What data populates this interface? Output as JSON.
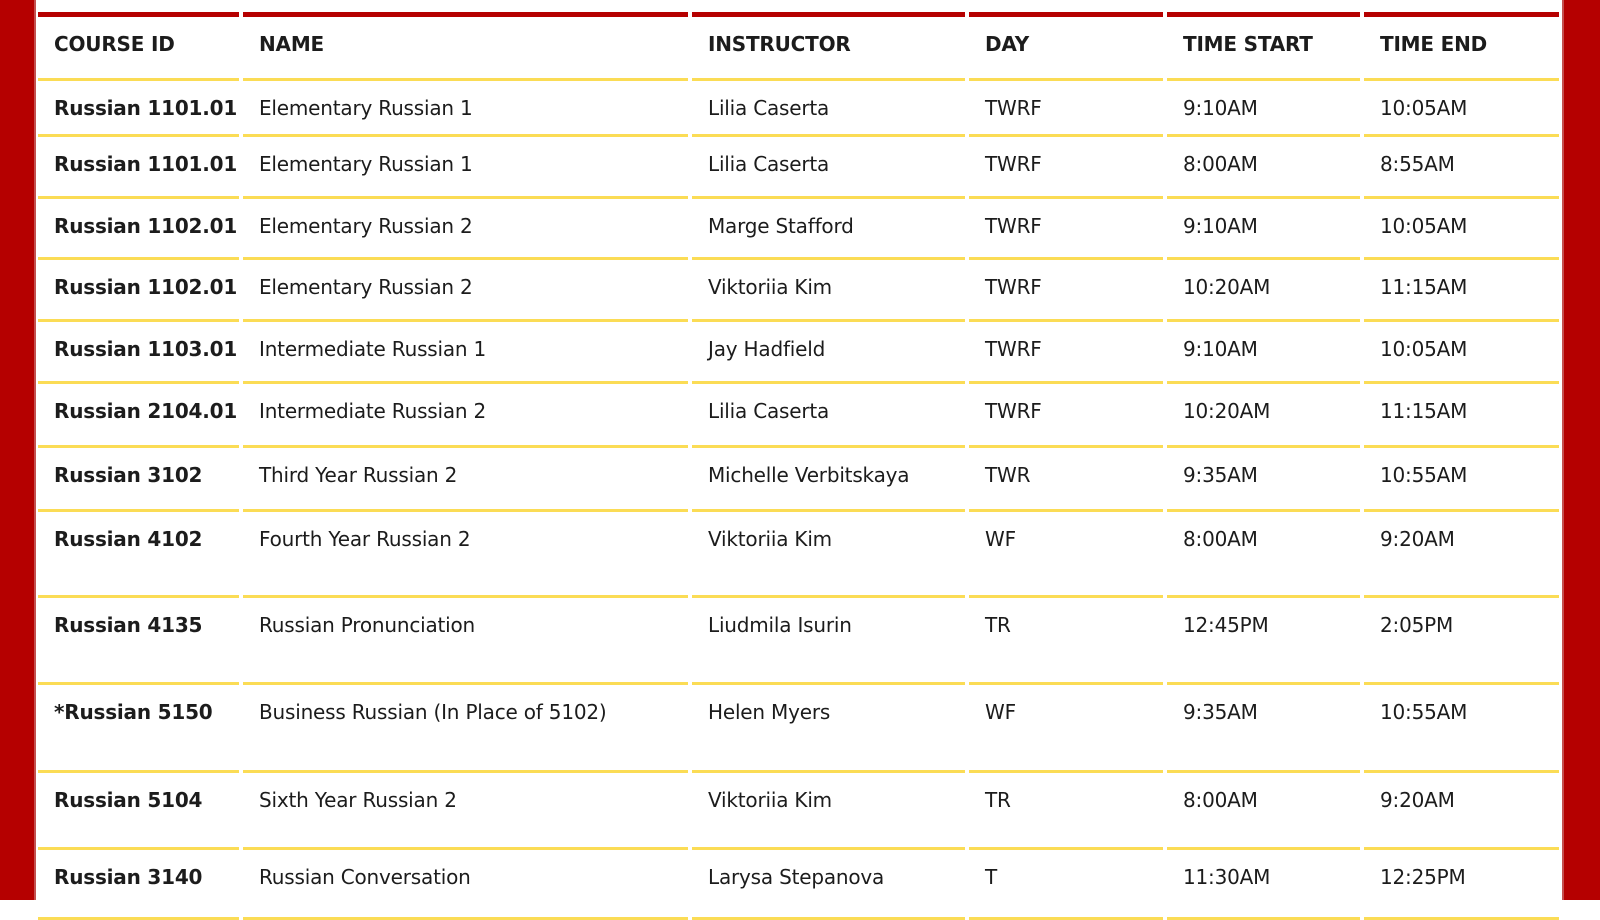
{
  "colors": {
    "scarlet": "#b50000",
    "gold": "#fbdc55",
    "text": "#1c1c1c"
  },
  "table": {
    "headers": [
      "COURSE ID",
      "NAME",
      "INSTRUCTOR",
      "DAY",
      "TIME START",
      "TIME END"
    ],
    "rows": [
      {
        "course_id": "Russian 1101.01",
        "name": "Elementary Russian 1",
        "instructor": "Lilia Caserta",
        "day": "TWRF",
        "time_start": "9:10AM",
        "time_end": "10:05AM"
      },
      {
        "course_id": "Russian 1101.01",
        "name": "Elementary Russian 1",
        "instructor": "Lilia Caserta",
        "day": "TWRF",
        "time_start": "8:00AM",
        "time_end": "8:55AM"
      },
      {
        "course_id": "Russian 1102.01",
        "name": "Elementary Russian 2",
        "instructor": "Marge Stafford",
        "day": "TWRF",
        "time_start": "9:10AM",
        "time_end": "10:05AM"
      },
      {
        "course_id": "Russian 1102.01",
        "name": "Elementary Russian 2",
        "instructor": "Viktoriia Kim",
        "day": "TWRF",
        "time_start": "10:20AM",
        "time_end": "11:15AM"
      },
      {
        "course_id": "Russian 1103.01",
        "name": "Intermediate Russian 1",
        "instructor": "Jay Hadfield",
        "day": "TWRF",
        "time_start": "9:10AM",
        "time_end": "10:05AM"
      },
      {
        "course_id": "Russian 2104.01",
        "name": "Intermediate Russian 2",
        "instructor": "Lilia Caserta",
        "day": "TWRF",
        "time_start": "10:20AM",
        "time_end": "11:15AM"
      },
      {
        "course_id": "Russian 3102",
        "name": "Third Year Russian 2",
        "instructor": "Michelle Verbitskaya",
        "day": "TWR",
        "time_start": "9:35AM",
        "time_end": "10:55AM"
      },
      {
        "course_id": "Russian 4102",
        "name": "Fourth Year Russian 2",
        "instructor": "Viktoriia Kim",
        "day": "WF",
        "time_start": "8:00AM",
        "time_end": "9:20AM"
      },
      {
        "course_id": "Russian 4135",
        "name": "Russian Pronunciation",
        "instructor": "Liudmila Isurin",
        "day": "TR",
        "time_start": "12:45PM",
        "time_end": "2:05PM"
      },
      {
        "course_id": "*Russian 5150",
        "name": "Business Russian (In Place of 5102)",
        "instructor": "Helen Myers",
        "day": "WF",
        "time_start": "9:35AM",
        "time_end": "10:55AM"
      },
      {
        "course_id": "Russian 5104",
        "name": "Sixth Year Russian 2",
        "instructor": "Viktoriia Kim",
        "day": "TR",
        "time_start": "8:00AM",
        "time_end": "9:20AM"
      },
      {
        "course_id": "Russian 3140",
        "name": "Russian Conversation",
        "instructor": "Larysa Stepanova",
        "day": "T",
        "time_start": "11:30AM",
        "time_end": "12:25PM"
      }
    ]
  }
}
